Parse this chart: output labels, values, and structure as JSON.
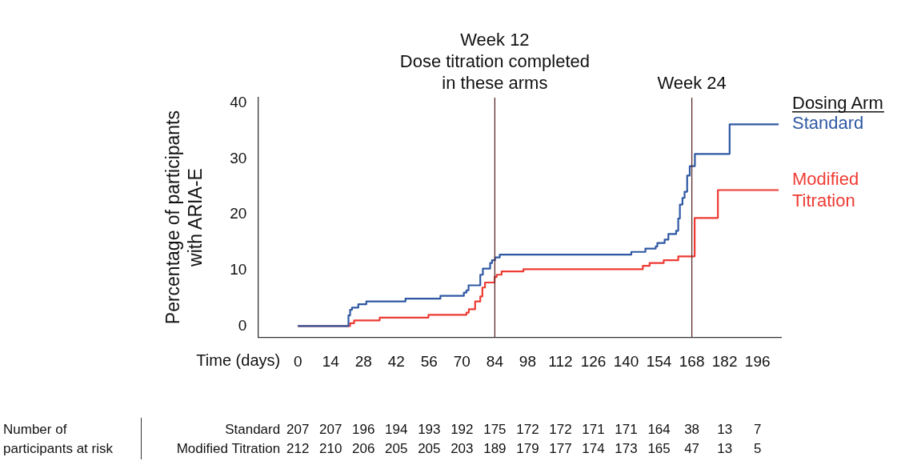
{
  "chart_data": {
    "type": "step",
    "xlabel": "Time (days)",
    "ylabel": "Percentage of participants\nwith ARIA-E",
    "legend_title": "Dosing Arm",
    "legend": "right",
    "grid": false,
    "xlim": [
      -17,
      206
    ],
    "xticks": [
      0,
      14,
      28,
      42,
      56,
      70,
      84,
      98,
      112,
      126,
      140,
      154,
      168,
      182,
      196
    ],
    "ylim": [
      -2,
      41
    ],
    "yticks": [
      0,
      10,
      20,
      30,
      40
    ],
    "series": [
      {
        "name": "Standard",
        "color": "#2f58a3",
        "x": [
          0,
          21.6,
          22.3,
          23.1,
          25.8,
          29.2,
          45.9,
          60.8,
          70.8,
          71.9,
          72.8,
          77.8,
          78.9,
          82,
          82.8,
          84.1,
          86.1,
          142.2,
          148.2,
          152.6,
          153.3,
          156.4,
          158,
          161.3,
          162.2,
          162.9,
          164,
          164.9,
          166,
          167.1,
          169.3,
          184.1,
          205
        ],
        "values": [
          0,
          1.9,
          2.9,
          3.3,
          3.9,
          4.4,
          4.9,
          5.4,
          6,
          6.4,
          7.3,
          9.2,
          10.3,
          11.3,
          11.8,
          12.3,
          12.8,
          13.3,
          13.9,
          14.3,
          14.9,
          15.5,
          16.5,
          17.1,
          19.3,
          21.8,
          23,
          24.1,
          27,
          28.7,
          30.9,
          36.2,
          36.2
        ]
      },
      {
        "name": "Modified Titration",
        "color": "#ee3b33",
        "x": [
          0,
          22.3,
          24,
          34.9,
          55.7,
          71.9,
          72.9,
          75.6,
          77.8,
          78.7,
          79.8,
          83.9,
          84.8,
          86.9,
          96.2,
          147.1,
          150,
          156,
          162.2,
          169.2,
          179.1,
          205
        ],
        "values": [
          0,
          0.5,
          1,
          1.5,
          2,
          2.4,
          3,
          4.4,
          5.3,
          6.9,
          7.8,
          8.8,
          9.2,
          9.8,
          10.2,
          10.8,
          11.3,
          11.8,
          12.5,
          19.4,
          24.4,
          24.4
        ]
      }
    ],
    "ref_lines": [
      {
        "axis": "x",
        "value": 84,
        "label": "Week 12\nDose titration completed\nin these arms",
        "color": "#5b2b2b"
      },
      {
        "axis": "x",
        "value": 168,
        "label": "Week 24",
        "color": "#5b2b2b"
      }
    ],
    "annotations": [
      "Number of participants at risk",
      "Standard",
      "207 207 196 194 193 192 175 172 172 171 171 164 38 13 7",
      "Modified Titration",
      "212 210 206 205 205 203 189 179 177 174 173 165 47 13 5"
    ]
  }
}
